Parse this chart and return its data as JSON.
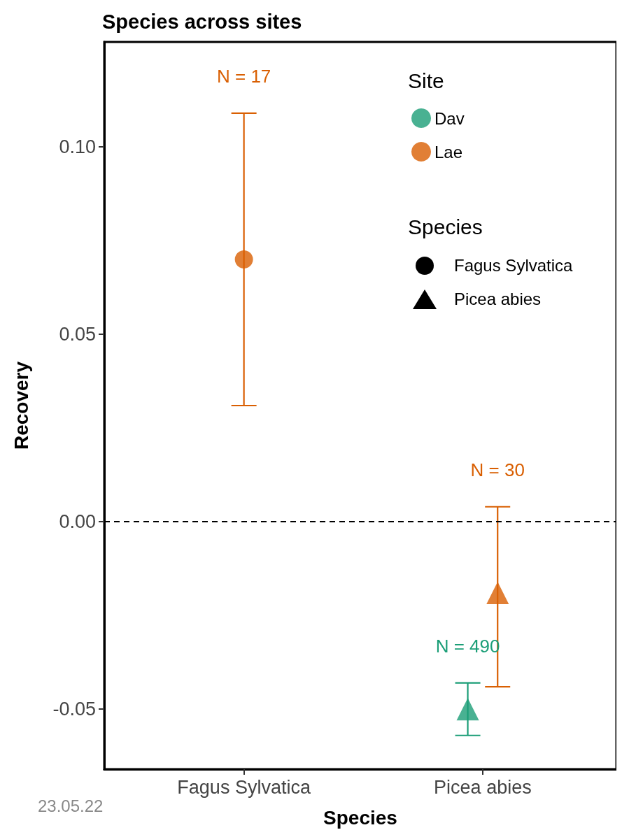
{
  "chart_data": {
    "type": "scatter",
    "title": "Species across sites",
    "xlabel": "Species",
    "ylabel": "Recovery",
    "legend_title": "Site",
    "categories": [
      "Fagus Sylvatica",
      "Picea abies"
    ],
    "marker": [
      "circle",
      "triangle"
    ],
    "series": [
      {
        "name": "Dav",
        "color": "#1b9e77",
        "values": [
          null,
          -0.05
        ],
        "errors": [
          null,
          [
            -0.057,
            -0.043
          ]
        ]
      },
      {
        "name": "Lae",
        "color": "#d95f02",
        "values": [
          0.07,
          -0.019
        ],
        "errors": [
          [
            0.031,
            0.109
          ],
          [
            -0.044,
            0.004
          ]
        ]
      }
    ],
    "ylim": [
      -0.066,
      0.128
    ],
    "yticks": [
      {
        "value": -0.05,
        "label": "-0.05"
      },
      {
        "value": 0,
        "label": "0.00"
      },
      {
        "value": 0.05,
        "label": "0.05"
      },
      {
        "value": 0.1,
        "label": "0.10"
      }
    ],
    "ref_lines": [
      {
        "axis": "y",
        "value": 0,
        "color": "#000000",
        "line_style": "dashed"
      }
    ],
    "grid": false,
    "legend": "top right",
    "annotations": [
      {
        "text": "N = 17",
        "x": "Fagus Sylvatica",
        "y": 0.109
      },
      {
        "text": "N = 30",
        "x": "Picea abies",
        "y": 0.004
      },
      {
        "text": "N = 490",
        "x": "Picea abies",
        "y": -0.043
      },
      "23.05.22"
    ]
  }
}
